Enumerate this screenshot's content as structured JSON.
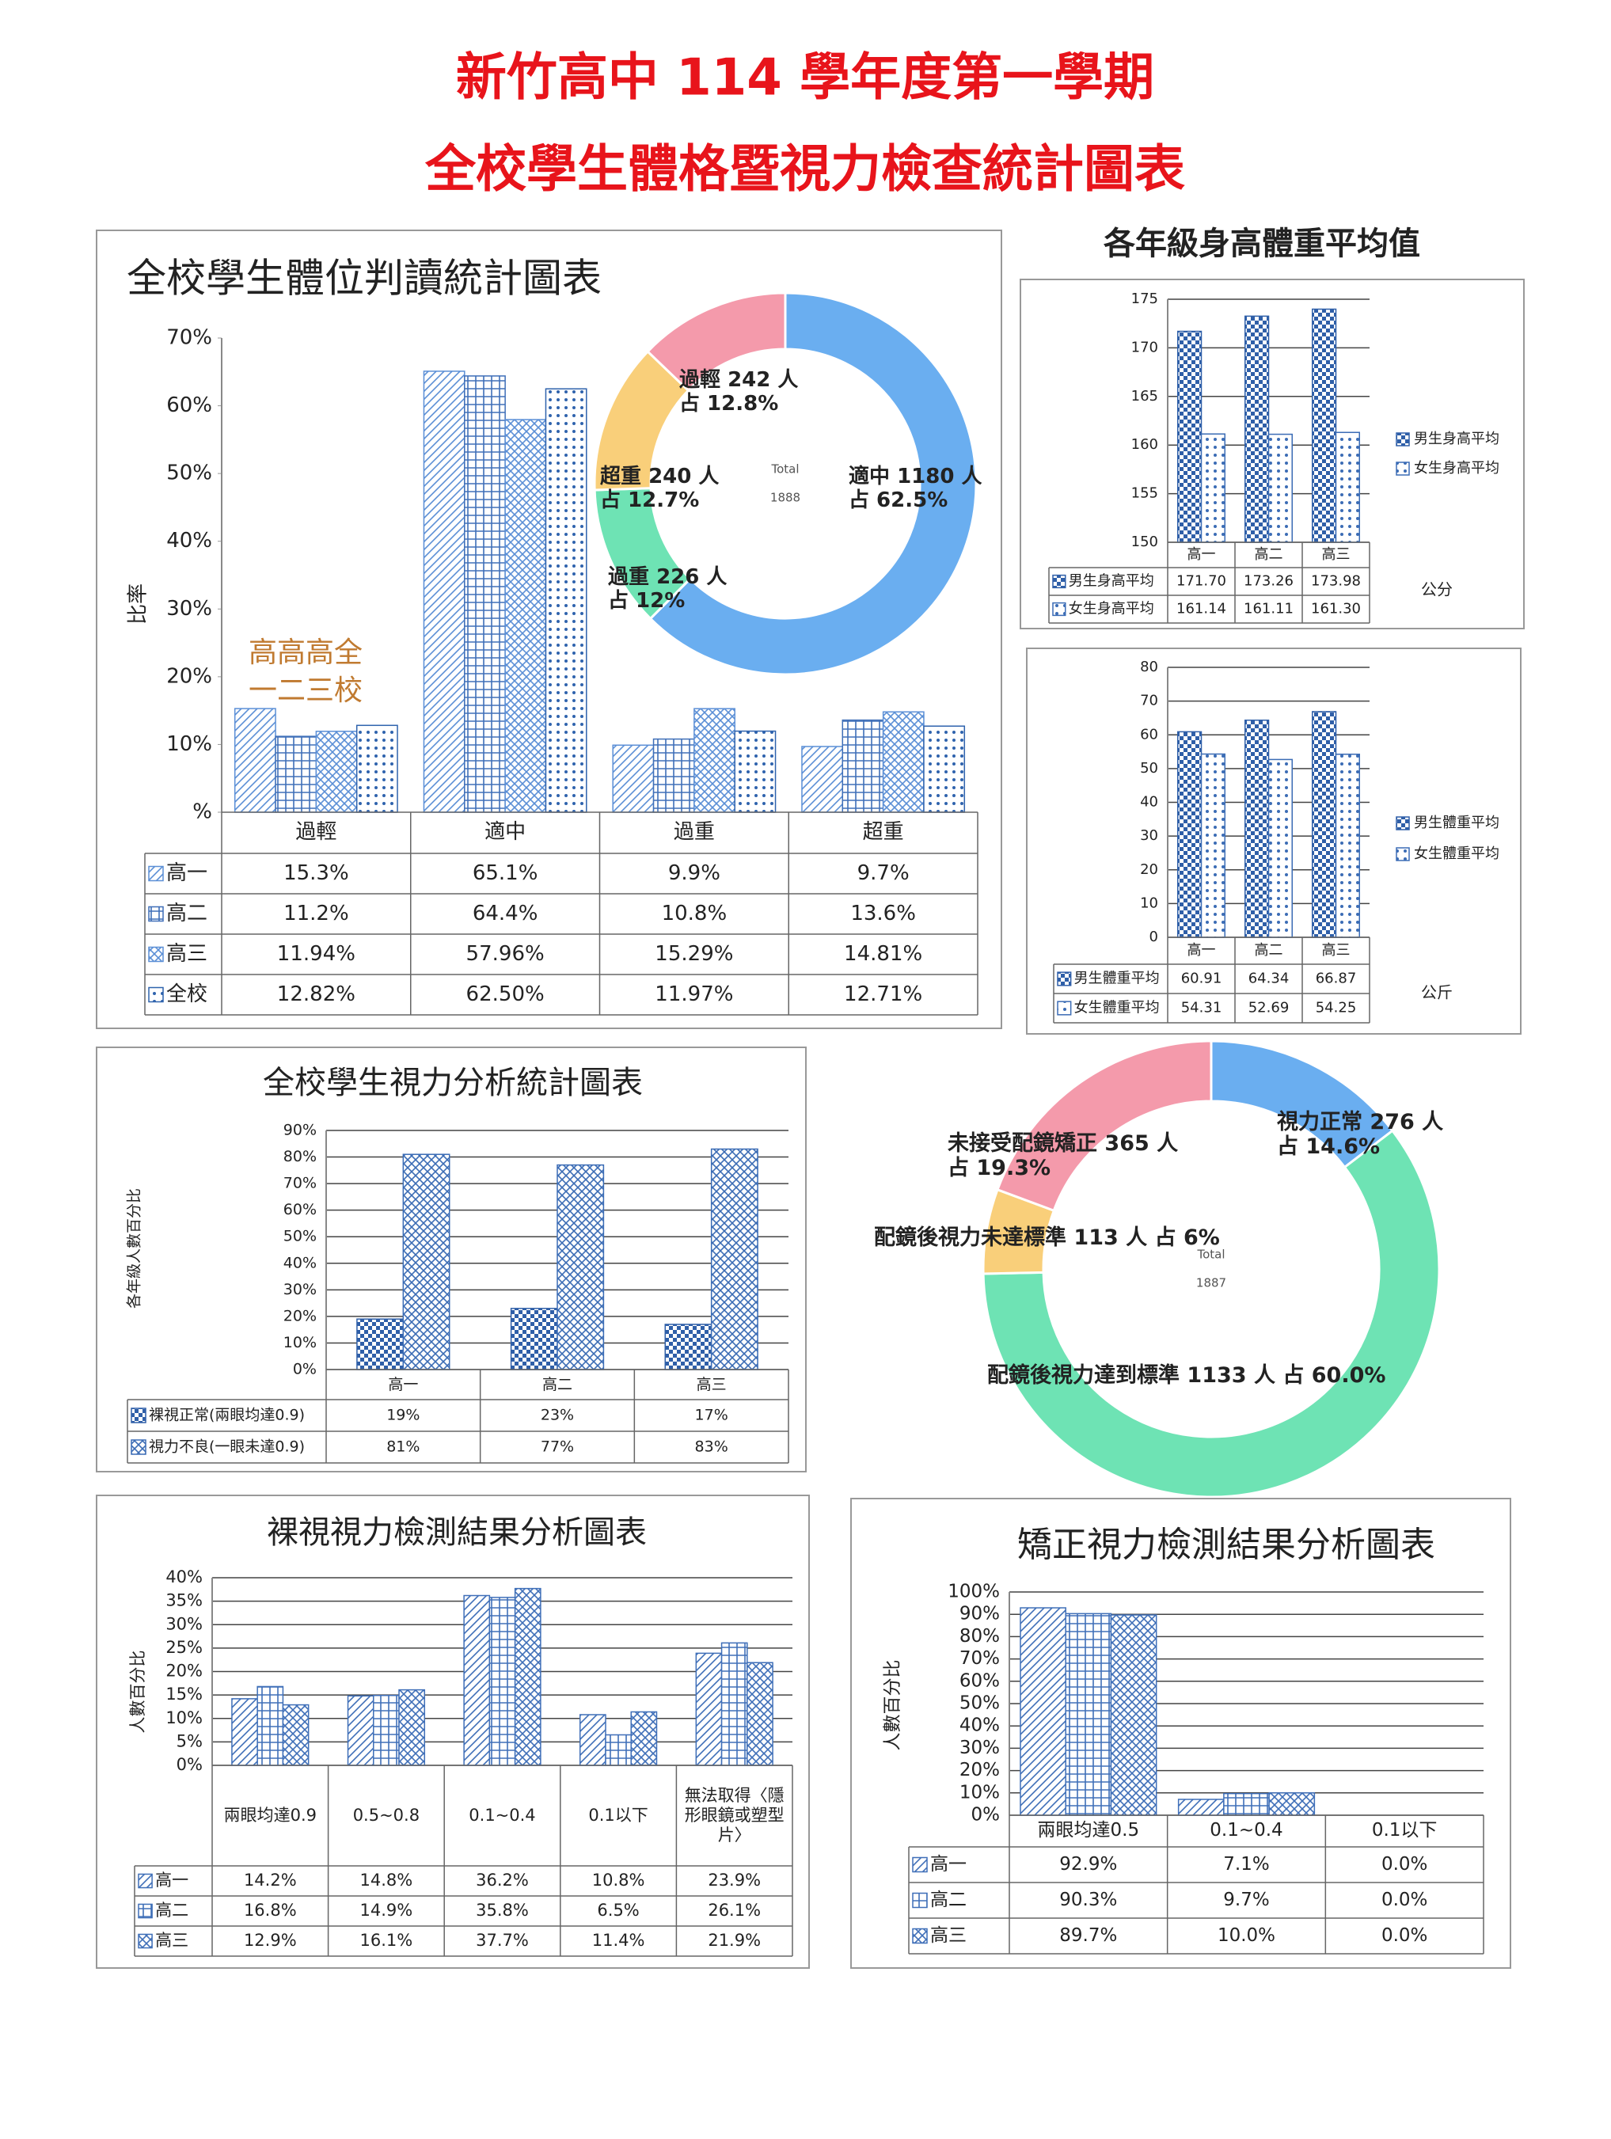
{
  "header": {
    "lines": [
      "新竹高中 114 學年度第一學期",
      "全校學生體格暨視力檢查統計圖表"
    ],
    "section_title": "各年級身高體重平均值"
  },
  "chart_data": [
    {
      "type": "bar",
      "title": "全校學生體位判讀統計圖表",
      "ylabel": "比率",
      "categories": [
        "過輕",
        "適中",
        "過重",
        "超重"
      ],
      "series": [
        {
          "name": "高一",
          "color": "#5b8fd6",
          "values": [
            15.3,
            65.1,
            9.9,
            9.7
          ],
          "value_labels": [
            "15.3%",
            "65.1%",
            "9.9%",
            "9.7%"
          ]
        },
        {
          "name": "高二",
          "color": "#3f6fb8",
          "values": [
            11.2,
            64.4,
            10.8,
            13.6
          ],
          "value_labels": [
            "11.2%",
            "64.4%",
            "10.8%",
            "13.6%"
          ]
        },
        {
          "name": "高三",
          "color": "#5b8fd6",
          "values": [
            11.94,
            57.96,
            15.29,
            14.81
          ],
          "value_labels": [
            "11.94%",
            "57.96%",
            "15.29%",
            "14.81%"
          ]
        },
        {
          "name": "全校",
          "color": "#2f63ad",
          "values": [
            12.82,
            62.5,
            11.97,
            12.71
          ],
          "value_labels": [
            "12.82%",
            "62.50%",
            "11.97%",
            "12.71%"
          ]
        }
      ],
      "ylim": [
        0,
        70
      ],
      "yticks": [
        {
          "value": 0,
          "label": "%"
        },
        {
          "value": 10,
          "label": "10%"
        },
        {
          "value": 20,
          "label": "20%"
        },
        {
          "value": 30,
          "label": "30%"
        },
        {
          "value": 40,
          "label": "40%"
        },
        {
          "value": 50,
          "label": "50%"
        },
        {
          "value": 60,
          "label": "60%"
        },
        {
          "value": 70,
          "label": "70%"
        }
      ],
      "grid": false,
      "annotation": [
        "高高高全",
        "一二三校"
      ]
    },
    {
      "type": "donut",
      "categories": [
        "適中",
        "過重",
        "超重",
        "過輕"
      ],
      "values": [
        1180,
        226,
        240,
        242
      ],
      "value_labels": [
        "1180 人",
        "226 人",
        "240 人",
        "242 人"
      ],
      "percent_labels": [
        "占 62.5%",
        "占 12%",
        "占 12.7%",
        "占 12.8%"
      ],
      "colors": [
        "#6aaef0",
        "#6ee3b4",
        "#f9cf7a",
        "#f49aab"
      ],
      "center_label": "Total",
      "total": 1888
    },
    {
      "type": "bar",
      "unit": "公分",
      "categories": [
        "高一",
        "高二",
        "高三"
      ],
      "series": [
        {
          "name": "男生身高平均",
          "color": "#2f5fa8",
          "values": [
            171.7,
            173.26,
            173.98
          ],
          "value_labels": [
            "171.70",
            "173.26",
            "173.98"
          ]
        },
        {
          "name": "女生身高平均",
          "color": "#3b6cb5",
          "values": [
            161.14,
            161.11,
            161.3
          ],
          "value_labels": [
            "161.14",
            "161.11",
            "161.30"
          ]
        }
      ],
      "ylim": [
        150,
        175
      ],
      "yticks": [
        150,
        155,
        160,
        165,
        170,
        175
      ],
      "grid": true,
      "legend": "right"
    },
    {
      "type": "bar",
      "unit": "公斤",
      "categories": [
        "高一",
        "高二",
        "高三"
      ],
      "series": [
        {
          "name": "男生體重平均",
          "color": "#2f5fa8",
          "values": [
            60.91,
            64.34,
            66.87
          ]
        },
        {
          "name": "女生體重平均",
          "color": "#3b6cb5",
          "values": [
            54.31,
            52.69,
            54.25
          ]
        }
      ],
      "ylim": [
        0,
        80
      ],
      "yticks": [
        0,
        10,
        20,
        30,
        40,
        50,
        60,
        70,
        80
      ],
      "grid": true,
      "legend": "right"
    },
    {
      "type": "bar",
      "title": "全校學生視力分析統計圖表",
      "ylabel": "各年級人數百分比",
      "categories": [
        "高一",
        "高二",
        "高三"
      ],
      "series": [
        {
          "name": "裸視正常(兩眼均達0.9)",
          "color": "#2f5fa8",
          "values": [
            19,
            23,
            17
          ],
          "value_labels": [
            "19%",
            "23%",
            "17%"
          ]
        },
        {
          "name": "視力不良(一眼未達0.9)",
          "color": "#3b6cb5",
          "values": [
            81,
            77,
            83
          ],
          "value_labels": [
            "81%",
            "77%",
            "83%"
          ]
        }
      ],
      "ylim": [
        0,
        90
      ],
      "yticks": [
        {
          "value": 0,
          "label": "0%"
        },
        {
          "value": 10,
          "label": "10%"
        },
        {
          "value": 20,
          "label": "20%"
        },
        {
          "value": 30,
          "label": "30%"
        },
        {
          "value": 40,
          "label": "40%"
        },
        {
          "value": 50,
          "label": "50%"
        },
        {
          "value": 60,
          "label": "60%"
        },
        {
          "value": 70,
          "label": "70%"
        },
        {
          "value": 80,
          "label": "80%"
        },
        {
          "value": 90,
          "label": "90%"
        }
      ],
      "grid": true
    },
    {
      "type": "donut",
      "categories": [
        "視力正常",
        "配鏡後視力達到標準",
        "配鏡後視力未達標準",
        "未接受配鏡矯正"
      ],
      "values": [
        276,
        1133,
        113,
        365
      ],
      "value_labels": [
        "276 人",
        "1133 人",
        "113 人",
        "365 人"
      ],
      "percent_labels": [
        "占 14.6%",
        "占 60.0%",
        "占 6%",
        "占 19.3%"
      ],
      "colors": [
        "#6aaef0",
        "#6ee3b4",
        "#f9cf7a",
        "#f49aab"
      ],
      "center_label": "Total",
      "total": 1887
    },
    {
      "type": "bar",
      "title": "裸視視力檢測結果分析圖表",
      "ylabel": "人數百分比",
      "categories": [
        "兩眼均達0.9",
        "0.5~0.8",
        "0.1~0.4",
        "0.1以下",
        "無法取得〈隱形眼鏡或塑型片〉"
      ],
      "series": [
        {
          "name": "高一",
          "color": "#3f6fb8",
          "values": [
            14.2,
            14.8,
            36.2,
            10.8,
            23.9
          ],
          "value_labels": [
            "14.2%",
            "14.8%",
            "36.2%",
            "10.8%",
            "23.9%"
          ]
        },
        {
          "name": "高二",
          "color": "#3f6fb8",
          "values": [
            16.8,
            14.9,
            35.8,
            6.5,
            26.1
          ],
          "value_labels": [
            "16.8%",
            "14.9%",
            "35.8%",
            "6.5%",
            "26.1%"
          ]
        },
        {
          "name": "高三",
          "color": "#3f6fb8",
          "values": [
            12.9,
            16.1,
            37.7,
            11.4,
            21.9
          ],
          "value_labels": [
            "12.9%",
            "16.1%",
            "37.7%",
            "11.4%",
            "21.9%"
          ]
        }
      ],
      "ylim": [
        0,
        40
      ],
      "yticks": [
        {
          "value": 0,
          "label": "0%"
        },
        {
          "value": 5,
          "label": "5%"
        },
        {
          "value": 10,
          "label": "10%"
        },
        {
          "value": 15,
          "label": "15%"
        },
        {
          "value": 20,
          "label": "20%"
        },
        {
          "value": 25,
          "label": "25%"
        },
        {
          "value": 30,
          "label": "30%"
        },
        {
          "value": 35,
          "label": "35%"
        },
        {
          "value": 40,
          "label": "40%"
        }
      ],
      "grid": true
    },
    {
      "type": "bar",
      "title": "矯正視力檢測結果分析圖表",
      "ylabel": "人數百分比",
      "categories": [
        "兩眼均達0.5",
        "0.1~0.4",
        "0.1以下"
      ],
      "series": [
        {
          "name": "高一",
          "color": "#3f6fb8",
          "values": [
            92.9,
            7.1,
            0.0
          ],
          "value_labels": [
            "92.9%",
            "7.1%",
            "0.0%"
          ]
        },
        {
          "name": "高二",
          "color": "#3f6fb8",
          "values": [
            90.3,
            9.7,
            0.0
          ],
          "value_labels": [
            "90.3%",
            "9.7%",
            "0.0%"
          ]
        },
        {
          "name": "高三",
          "color": "#3f6fb8",
          "values": [
            89.7,
            10.0,
            0.0
          ],
          "value_labels": [
            "89.7%",
            "10.0%",
            "0.0%"
          ]
        }
      ],
      "ylim": [
        0,
        100
      ],
      "yticks": [
        {
          "value": 0,
          "label": "0%"
        },
        {
          "value": 10,
          "label": "10%"
        },
        {
          "value": 20,
          "label": "20%"
        },
        {
          "value": 30,
          "label": "30%"
        },
        {
          "value": 40,
          "label": "40%"
        },
        {
          "value": 50,
          "label": "50%"
        },
        {
          "value": 60,
          "label": "60%"
        },
        {
          "value": 70,
          "label": "70%"
        },
        {
          "value": 80,
          "label": "80%"
        },
        {
          "value": 90,
          "label": "90%"
        },
        {
          "value": 100,
          "label": "100%"
        }
      ],
      "grid": true
    }
  ]
}
